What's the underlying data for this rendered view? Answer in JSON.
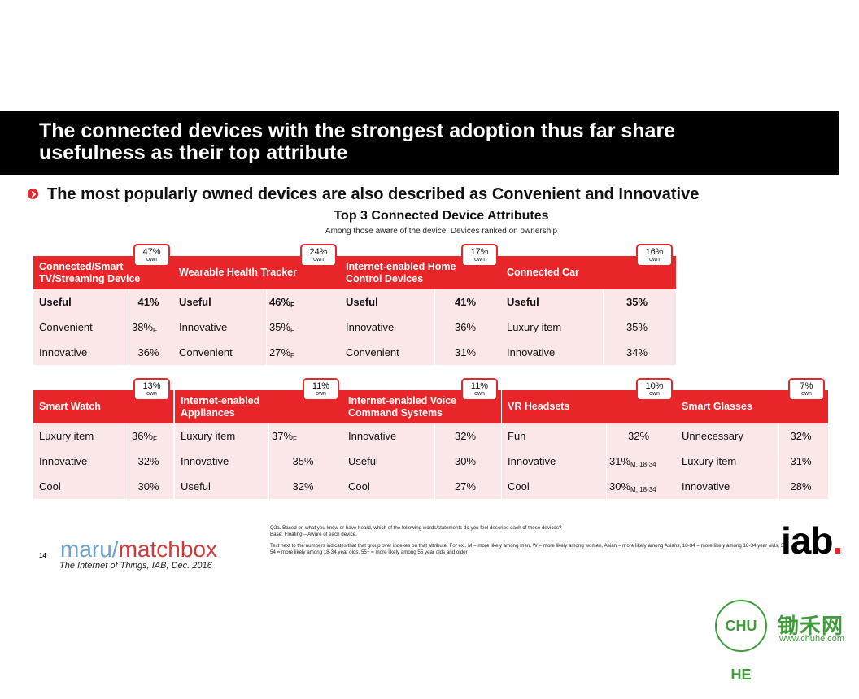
{
  "slide": {
    "title": "The connected devices with the strongest adoption thus far share usefulness as their top attribute",
    "bullet": "The most popularly owned devices are also described as Convenient and Innovative",
    "chart_title": "Top 3 Connected Device Attributes",
    "chart_subtitle": "Among those aware of the device.  Devices ranked on ownership"
  },
  "own_label": "own",
  "chart_data": {
    "type": "table",
    "title": "Top 3 Connected Device Attributes",
    "subtitle": "Among those aware of the device.  Devices ranked on ownership",
    "devices": [
      {
        "name": "Connected/Smart TV/Streaming Device",
        "own": "47%",
        "attributes": [
          {
            "label": "Useful",
            "value": "41%",
            "sub": ""
          },
          {
            "label": "Convenient",
            "value": "38%",
            "sub": "F"
          },
          {
            "label": "Innovative",
            "value": "36%",
            "sub": ""
          }
        ]
      },
      {
        "name": "Wearable Health Tracker",
        "own": "24%",
        "attributes": [
          {
            "label": "Useful",
            "value": "46%",
            "sub": "F"
          },
          {
            "label": "Innovative",
            "value": "35%",
            "sub": "F"
          },
          {
            "label": "Convenient",
            "value": "27%",
            "sub": "F"
          }
        ]
      },
      {
        "name": "Internet-enabled Home Control Devices",
        "own": "17%",
        "attributes": [
          {
            "label": "Useful",
            "value": "41%",
            "sub": ""
          },
          {
            "label": "Innovative",
            "value": "36%",
            "sub": ""
          },
          {
            "label": "Convenient",
            "value": "31%",
            "sub": ""
          }
        ]
      },
      {
        "name": "Connected Car",
        "own": "16%",
        "attributes": [
          {
            "label": "Useful",
            "value": "35%",
            "sub": ""
          },
          {
            "label": "Luxury item",
            "value": "35%",
            "sub": ""
          },
          {
            "label": "Innovative",
            "value": "34%",
            "sub": ""
          }
        ]
      },
      {
        "name": "Smart Watch",
        "own": "13%",
        "attributes": [
          {
            "label": "Luxury item",
            "value": "36%",
            "sub": "F"
          },
          {
            "label": "Innovative",
            "value": "32%",
            "sub": ""
          },
          {
            "label": "Cool",
            "value": "30%",
            "sub": ""
          }
        ]
      },
      {
        "name": "Internet-enabled Appliances",
        "own": "11%",
        "attributes": [
          {
            "label": "Luxury item",
            "value": "37%",
            "sub": "F"
          },
          {
            "label": "Innovative",
            "value": "35%",
            "sub": ""
          },
          {
            "label": "Useful",
            "value": "32%",
            "sub": ""
          }
        ]
      },
      {
        "name": "Internet-enabled Voice Command Systems",
        "own": "11%",
        "attributes": [
          {
            "label": "Innovative",
            "value": "32%",
            "sub": ""
          },
          {
            "label": "Useful",
            "value": "30%",
            "sub": ""
          },
          {
            "label": "Cool",
            "value": "27%",
            "sub": ""
          }
        ]
      },
      {
        "name": "VR Headsets",
        "own": "10%",
        "attributes": [
          {
            "label": "Fun",
            "value": "32%",
            "sub": ""
          },
          {
            "label": "Innovative",
            "value": "31%",
            "sub": "M, 18-34"
          },
          {
            "label": "Cool",
            "value": "30%",
            "sub": "M, 18-34"
          }
        ]
      },
      {
        "name": "Smart Glasses",
        "own": "7%",
        "attributes": [
          {
            "label": "Unnecessary",
            "value": "32%",
            "sub": ""
          },
          {
            "label": "Luxury item",
            "value": "31%",
            "sub": ""
          },
          {
            "label": "Innovative",
            "value": "28%",
            "sub": ""
          }
        ]
      }
    ]
  },
  "footer": {
    "question": "Q2a.  Based on what you know or have heard, which of the following words/statements do you feel describe each of these devices?",
    "base": "Base: Floating – Aware of each device.",
    "note": "Text next to the numbers indicates that that group over indexes on that attribute.  For ex., M = more likely among men, W = more likely among women, Asian = more likely among Asians, 18-34 = more likely among 18-34 year olds, 35-54 = more likely among 18-34 year olds, 55+ = more likely among 55 year olds and older",
    "page_number": "14",
    "logo_part1": "maru",
    "logo_slash": "/",
    "logo_part2": "matchbox",
    "source": "The Internet of Things, IAB, Dec. 2016",
    "iab": "iab",
    "iab_dot": ".",
    "watermark_badge": "CHU HE",
    "watermark_name": "锄禾网",
    "watermark_url": "www.chuhe.com"
  }
}
